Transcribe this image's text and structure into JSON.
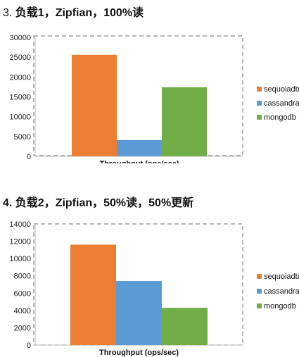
{
  "headings": {
    "chart1_number": "3.",
    "chart1_text": "负载1，Zipfian，100%读",
    "chart2_text": "4. 负载2，Zipfian，50%读，50%更新"
  },
  "chart_data": [
    {
      "type": "bar",
      "title": "3. 负载1，Zipfian，100%读",
      "xlabel": "Throughput (ops/sec)",
      "ylabel": "",
      "ylim": [
        0,
        30000
      ],
      "yticks": [
        "0",
        "5000",
        "10000",
        "15000",
        "20000",
        "25000",
        "30000"
      ],
      "categories": [
        "Throughput (ops/sec)"
      ],
      "series": [
        {
          "name": "sequoiadb",
          "values": [
            25600
          ],
          "color": "#ED7D31"
        },
        {
          "name": "cassandra",
          "values": [
            4100
          ],
          "color": "#5B9BD5"
        },
        {
          "name": "mongodb",
          "values": [
            17400
          ],
          "color": "#70AD47"
        }
      ],
      "legend": "right",
      "grid": false
    },
    {
      "type": "bar",
      "title": "4. 负载2，Zipfian，50%读，50%更新",
      "xlabel": "Throughput (ops/sec)",
      "ylabel": "",
      "ylim": [
        0,
        14000
      ],
      "yticks": [
        "0",
        "2000",
        "4000",
        "6000",
        "8000",
        "10000",
        "12000",
        "14000"
      ],
      "categories": [
        "Throughput (ops/sec)"
      ],
      "series": [
        {
          "name": "sequoiadb",
          "values": [
            11600
          ],
          "color": "#ED7D31"
        },
        {
          "name": "cassandra",
          "values": [
            7400
          ],
          "color": "#5B9BD5"
        },
        {
          "name": "mongodb",
          "values": [
            4300
          ],
          "color": "#70AD47"
        }
      ],
      "legend": "right",
      "grid": false
    }
  ]
}
